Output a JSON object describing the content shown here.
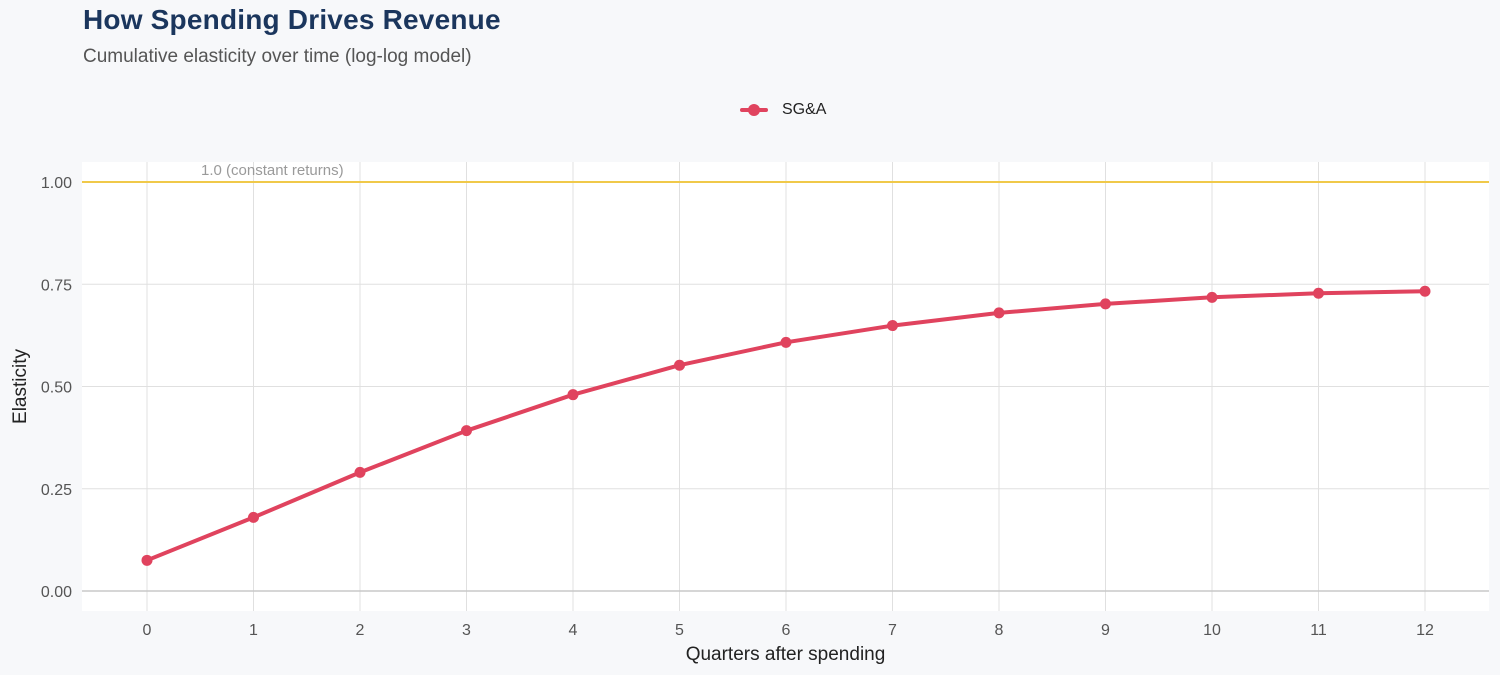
{
  "header": {
    "title": "How Spending Drives Revenue",
    "subtitle": "Cumulative elasticity over time (log-log model)"
  },
  "colors": {
    "series": "#e0435e",
    "reference_line": "#f0c94a",
    "gridline": "#e0e0e0",
    "baseline": "#c8c8c8",
    "panel": "#ffffff",
    "background": "#f7f8fa",
    "title": "#1b365d"
  },
  "chart_data": {
    "type": "line",
    "title": "How Spending Drives Revenue",
    "subtitle": "Cumulative elasticity over time (log-log model)",
    "xlabel": "Quarters after spending",
    "ylabel": "Elasticity",
    "xlim": [
      0,
      12
    ],
    "ylim": [
      0,
      1
    ],
    "x_ticks": [
      0,
      1,
      2,
      3,
      4,
      5,
      6,
      7,
      8,
      9,
      10,
      11,
      12
    ],
    "y_ticks": [
      0,
      0.25,
      0.5,
      0.75,
      1.0
    ],
    "y_tick_labels": [
      "0.00",
      "0.25",
      "0.50",
      "0.75",
      "1.00"
    ],
    "grid": true,
    "legend_position": "top-center",
    "series": [
      {
        "name": "SG&A",
        "color": "#e0435e",
        "x": [
          0,
          1,
          2,
          3,
          4,
          5,
          6,
          7,
          8,
          9,
          10,
          11,
          12
        ],
        "y": [
          0.075,
          0.18,
          0.29,
          0.392,
          0.48,
          0.552,
          0.608,
          0.649,
          0.68,
          0.702,
          0.718,
          0.728,
          0.733
        ]
      }
    ],
    "reference_lines": [
      {
        "y": 1.0,
        "label": "1.0 (constant returns)",
        "color": "#f0c94a"
      }
    ]
  }
}
